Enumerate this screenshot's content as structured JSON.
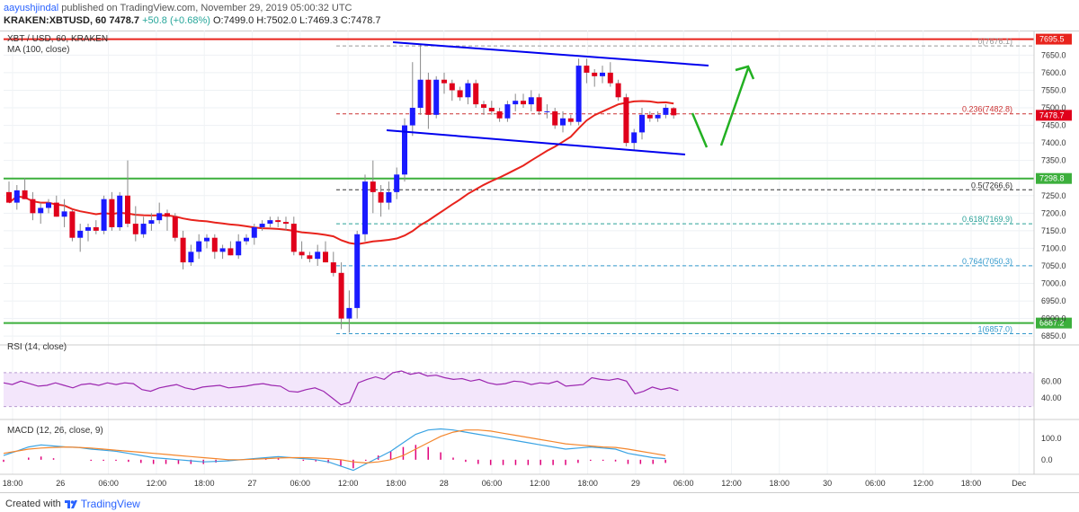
{
  "header": {
    "author": "aayushjindal",
    "published": "published on TradingView.com, November 29, 2019 05:00:32 UTC",
    "symbol": "KRAKEN:XBTUSD, 60",
    "last": "7478.7",
    "change": "+50.8 (+0.68%)",
    "ohlc": "O:7499.0 H:7502.0 L:7469.3 C:7478.7"
  },
  "legend": {
    "title": "XBT / USD, 60, KRAKEN",
    "ma": "MA (100, close)",
    "rsi": "RSI (14, close)",
    "macd": "MACD (12, 26, close, 9)"
  },
  "footer": {
    "created_with": "Created with",
    "brand": "TradingView"
  },
  "colors": {
    "up": "#1a1aff",
    "down": "#e0001b",
    "ma": "#e8231c",
    "channel": "#0000ee",
    "support": "#3caf3c",
    "resistance": "#e8231c",
    "arrow": "#22b022",
    "rsi_band": "#f3e6fb",
    "macd_line": "#3aa3e3",
    "signal_line": "#f4862c",
    "hist": "#e0007a"
  },
  "chart_data": {
    "type": "candlestick",
    "price_axis": {
      "ticks": [
        "7650.0",
        "7600.0",
        "7550.0",
        "7500.0",
        "7450.0",
        "7400.0",
        "7350.0",
        "7250.0",
        "7200.0",
        "7150.0",
        "7100.0",
        "7050.0",
        "7000.0",
        "6950.0",
        "6900.0",
        "6850.0"
      ],
      "range": [
        6830,
        7720
      ]
    },
    "time_axis": {
      "ticks": [
        "18:00",
        "26",
        "06:00",
        "12:00",
        "18:00",
        "27",
        "06:00",
        "12:00",
        "18:00",
        "28",
        "06:00",
        "12:00",
        "18:00",
        "29",
        "06:00",
        "12:00",
        "18:00",
        "30",
        "06:00",
        "12:00",
        "18:00",
        "Dec"
      ]
    },
    "horizontal_lines": [
      {
        "label": "7695.5",
        "value": 7695.5,
        "kind": "resistance"
      },
      {
        "label": "7298.8",
        "value": 7298.8,
        "kind": "support"
      },
      {
        "label": "6887.2",
        "value": 6887.2,
        "kind": "support"
      }
    ],
    "fib_levels": [
      {
        "label": "0(7676.1)",
        "value": 7676.1
      },
      {
        "label": "0.236(7482.8)",
        "value": 7482.8
      },
      {
        "label": "0.5(7266.6)",
        "value": 7266.6
      },
      {
        "label": "0.618(7169.9)",
        "value": 7169.9
      },
      {
        "label": "0.764(7050.3)",
        "value": 7050.3
      },
      {
        "label": "1(6857.0)",
        "value": 6857.0
      }
    ],
    "last_price_label": "7478.7",
    "candles": [
      [
        7260,
        7290,
        7230,
        7230
      ],
      [
        7230,
        7280,
        7210,
        7265
      ],
      [
        7265,
        7300,
        7240,
        7240
      ],
      [
        7240,
        7260,
        7180,
        7200
      ],
      [
        7200,
        7230,
        7170,
        7215
      ],
      [
        7215,
        7240,
        7200,
        7230
      ],
      [
        7230,
        7250,
        7190,
        7190
      ],
      [
        7190,
        7240,
        7160,
        7205
      ],
      [
        7205,
        7210,
        7120,
        7130
      ],
      [
        7130,
        7170,
        7090,
        7150
      ],
      [
        7150,
        7170,
        7120,
        7160
      ],
      [
        7160,
        7180,
        7140,
        7150
      ],
      [
        7150,
        7250,
        7140,
        7240
      ],
      [
        7240,
        7260,
        7150,
        7160
      ],
      [
        7160,
        7260,
        7150,
        7250
      ],
      [
        7250,
        7350,
        7160,
        7170
      ],
      [
        7170,
        7220,
        7120,
        7140
      ],
      [
        7140,
        7190,
        7130,
        7170
      ],
      [
        7170,
        7200,
        7150,
        7180
      ],
      [
        7180,
        7230,
        7170,
        7200
      ],
      [
        7200,
        7210,
        7150,
        7190
      ],
      [
        7190,
        7200,
        7120,
        7130
      ],
      [
        7130,
        7150,
        7040,
        7060
      ],
      [
        7060,
        7110,
        7050,
        7090
      ],
      [
        7090,
        7140,
        7070,
        7120
      ],
      [
        7120,
        7140,
        7100,
        7130
      ],
      [
        7130,
        7140,
        7070,
        7090
      ],
      [
        7090,
        7110,
        7070,
        7100
      ],
      [
        7100,
        7120,
        7080,
        7080
      ],
      [
        7080,
        7140,
        7070,
        7120
      ],
      [
        7120,
        7140,
        7110,
        7130
      ],
      [
        7130,
        7170,
        7110,
        7160
      ],
      [
        7160,
        7180,
        7150,
        7170
      ],
      [
        7170,
        7190,
        7160,
        7180
      ],
      [
        7180,
        7190,
        7160,
        7175
      ],
      [
        7175,
        7190,
        7150,
        7170
      ],
      [
        7170,
        7190,
        7080,
        7090
      ],
      [
        7090,
        7120,
        7070,
        7080
      ],
      [
        7080,
        7090,
        7060,
        7070
      ],
      [
        7070,
        7110,
        7050,
        7090
      ],
      [
        7090,
        7120,
        7060,
        7060
      ],
      [
        7060,
        7090,
        7020,
        7030
      ],
      [
        7030,
        7060,
        6870,
        6900
      ],
      [
        6900,
        6980,
        6860,
        6930
      ],
      [
        6930,
        7150,
        6900,
        7140
      ],
      [
        7140,
        7310,
        7120,
        7290
      ],
      [
        7290,
        7350,
        7200,
        7260
      ],
      [
        7260,
        7280,
        7190,
        7230
      ],
      [
        7230,
        7290,
        7210,
        7260
      ],
      [
        7260,
        7330,
        7240,
        7310
      ],
      [
        7310,
        7470,
        7290,
        7450
      ],
      [
        7450,
        7630,
        7420,
        7500
      ],
      [
        7500,
        7680,
        7480,
        7580
      ],
      [
        7580,
        7600,
        7440,
        7480
      ],
      [
        7480,
        7590,
        7470,
        7580
      ],
      [
        7580,
        7600,
        7540,
        7570
      ],
      [
        7570,
        7580,
        7520,
        7550
      ],
      [
        7550,
        7560,
        7520,
        7530
      ],
      [
        7530,
        7580,
        7510,
        7570
      ],
      [
        7570,
        7580,
        7500,
        7510
      ],
      [
        7510,
        7520,
        7480,
        7500
      ],
      [
        7500,
        7520,
        7480,
        7490
      ],
      [
        7490,
        7500,
        7460,
        7470
      ],
      [
        7470,
        7520,
        7460,
        7510
      ],
      [
        7510,
        7540,
        7490,
        7520
      ],
      [
        7520,
        7540,
        7500,
        7510
      ],
      [
        7510,
        7550,
        7490,
        7530
      ],
      [
        7530,
        7540,
        7480,
        7490
      ],
      [
        7490,
        7510,
        7470,
        7490
      ],
      [
        7490,
        7500,
        7440,
        7450
      ],
      [
        7450,
        7490,
        7430,
        7470
      ],
      [
        7470,
        7480,
        7450,
        7460
      ],
      [
        7460,
        7640,
        7450,
        7620
      ],
      [
        7620,
        7640,
        7570,
        7600
      ],
      [
        7600,
        7610,
        7560,
        7590
      ],
      [
        7590,
        7620,
        7570,
        7600
      ],
      [
        7600,
        7630,
        7560,
        7570
      ],
      [
        7570,
        7580,
        7520,
        7530
      ],
      [
        7530,
        7540,
        7390,
        7400
      ],
      [
        7400,
        7440,
        7380,
        7430
      ],
      [
        7430,
        7500,
        7410,
        7480
      ],
      [
        7480,
        7490,
        7460,
        7470
      ],
      [
        7470,
        7490,
        7460,
        7480
      ],
      [
        7480,
        7510,
        7470,
        7500
      ],
      [
        7499,
        7502,
        7469,
        7478.7
      ]
    ],
    "rsi": {
      "ticks": [
        "60.00",
        "40.00"
      ],
      "values": [
        58,
        56,
        60,
        57,
        54,
        55,
        58,
        55,
        52,
        56,
        57,
        55,
        58,
        56,
        58,
        57,
        50,
        48,
        52,
        54,
        56,
        52,
        50,
        53,
        54,
        55,
        52,
        53,
        54,
        56,
        57,
        55,
        54,
        48,
        47,
        50,
        52,
        48,
        40,
        32,
        35,
        58,
        62,
        65,
        62,
        70,
        72,
        68,
        70,
        66,
        67,
        64,
        62,
        63,
        60,
        62,
        58,
        56,
        57,
        60,
        59,
        56,
        58,
        57,
        60,
        54,
        55,
        56,
        64,
        62,
        61,
        63,
        60,
        45,
        48,
        53,
        50,
        52,
        49
      ]
    },
    "macd": {
      "ticks": [
        "100.0",
        "0.0"
      ],
      "macd_line": [
        20,
        40,
        60,
        70,
        65,
        60,
        58,
        50,
        45,
        40,
        30,
        20,
        10,
        5,
        0,
        -5,
        -10,
        -8,
        -5,
        0,
        5,
        10,
        15,
        10,
        5,
        0,
        -10,
        -30,
        -50,
        -20,
        10,
        40,
        80,
        120,
        140,
        145,
        140,
        130,
        120,
        110,
        100,
        90,
        80,
        70,
        60,
        50,
        55,
        60,
        55,
        50,
        30,
        20,
        10,
        5
      ],
      "signal_line": [
        30,
        40,
        50,
        55,
        58,
        60,
        58,
        55,
        50,
        45,
        40,
        35,
        30,
        25,
        20,
        15,
        10,
        5,
        0,
        0,
        2,
        5,
        8,
        10,
        10,
        8,
        5,
        0,
        -10,
        -15,
        -10,
        0,
        20,
        50,
        80,
        110,
        130,
        140,
        140,
        135,
        125,
        115,
        105,
        95,
        85,
        75,
        70,
        65,
        60,
        58,
        50,
        40,
        30,
        20
      ],
      "histogram": [
        -10,
        0,
        10,
        15,
        7,
        0,
        0,
        -5,
        -5,
        -5,
        -10,
        -15,
        -20,
        -20,
        -20,
        -20,
        -20,
        -13,
        -5,
        0,
        3,
        5,
        7,
        0,
        -5,
        -8,
        -15,
        -30,
        -40,
        -5,
        20,
        40,
        60,
        70,
        60,
        35,
        10,
        -10,
        -20,
        -25,
        -25,
        -25,
        -25,
        -25,
        -25,
        -25,
        -15,
        -5,
        -5,
        -8,
        -20,
        -20,
        -20,
        -15
      ]
    }
  }
}
